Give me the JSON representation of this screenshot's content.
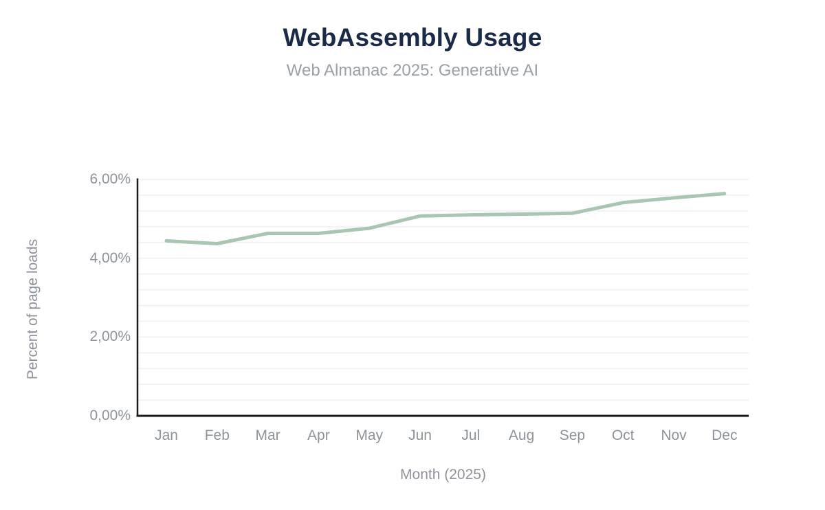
{
  "header": {
    "title": "WebAssembly Usage",
    "subtitle": "Web Almanac 2025: Generative AI"
  },
  "chart_data": {
    "type": "line",
    "title": "WebAssembly Usage",
    "subtitle": "Web Almanac 2025: Generative AI",
    "xlabel": "Month (2025)",
    "ylabel": "Percent of page loads",
    "categories": [
      "Jan",
      "Feb",
      "Mar",
      "Apr",
      "May",
      "Jun",
      "Jul",
      "Aug",
      "Sep",
      "Oct",
      "Nov",
      "Dec"
    ],
    "values": [
      4.44,
      4.37,
      4.63,
      4.63,
      4.76,
      5.07,
      5.1,
      5.12,
      5.14,
      5.41,
      5.53,
      5.64
    ],
    "y_tick_labels": [
      "0,00%",
      "2,00%",
      "4,00%",
      "6,00%"
    ],
    "y_tick_values": [
      0,
      2,
      4,
      6
    ],
    "ylim": [
      0,
      6
    ],
    "minor_grid_step": 0.4,
    "grid_on": true,
    "legend_position": "none",
    "colors": {
      "line": "#a9c6b2",
      "grid": "#f2f2f4",
      "axis": "#1a1b1e",
      "title": "#1c2a49",
      "subtitle": "#9aa0a6",
      "labels": "#8e939a"
    }
  }
}
